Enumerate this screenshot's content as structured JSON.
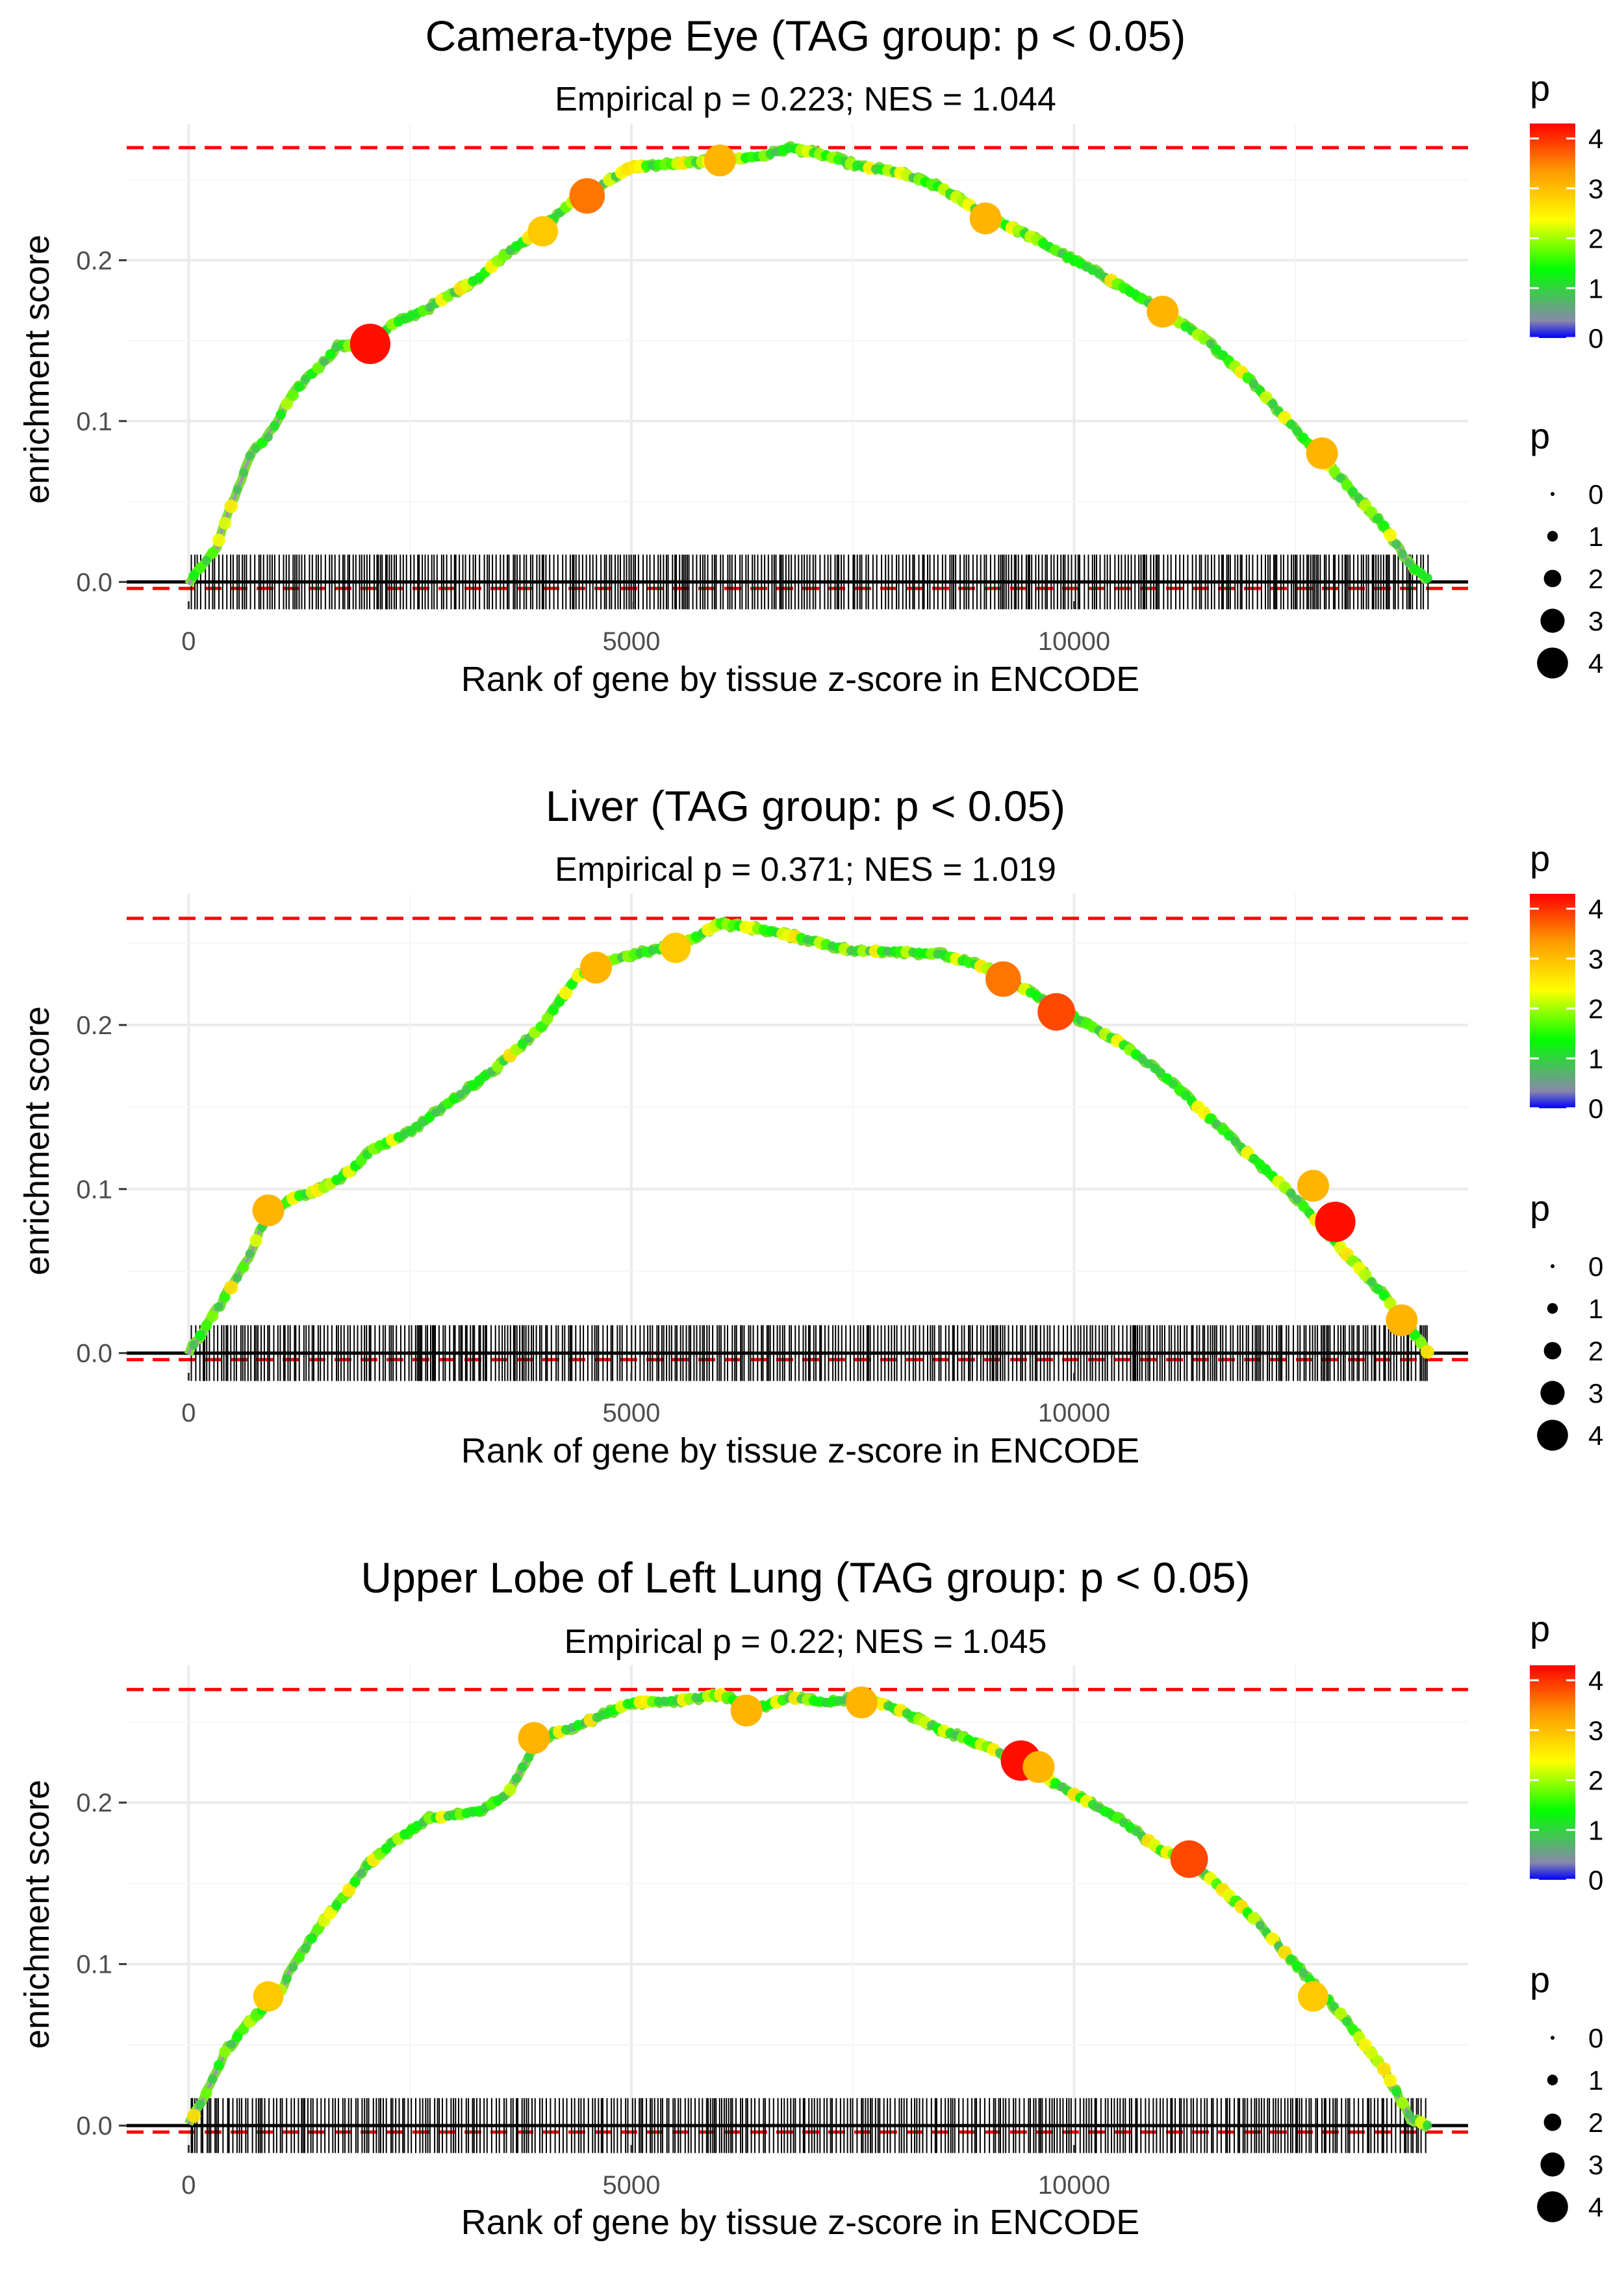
{
  "figure": {
    "axis_x_label": "Rank of gene by tissue z-score in ENCODE",
    "axis_y_label": "enrichment score",
    "legend_color_title": "p",
    "legend_size_title": "p",
    "legend_color_ticks": [
      "0",
      "1",
      "2",
      "3",
      "4"
    ],
    "legend_size_ticks": [
      "0",
      "1",
      "2",
      "3",
      "4"
    ],
    "colors": {
      "dashed_line": "#ff0000",
      "baseline": "#000000",
      "gradient": [
        "#0000ff",
        "#8888aa",
        "#00ff00",
        "#ffff00",
        "#ff9900",
        "#ff0000"
      ]
    }
  },
  "chart_data": [
    {
      "type": "line",
      "title": "Camera-type Eye (TAG group: p < 0.05)",
      "subtitle": "Empirical p = 0.223; NES = 1.044",
      "xlabel": "Rank of gene by tissue z-score in ENCODE",
      "ylabel": "enrichment score",
      "xlim": [
        -700,
        14450
      ],
      "ylim": [
        -0.012,
        0.285
      ],
      "x_ticks": [
        0,
        5000,
        10000
      ],
      "x_tick_labels": [
        "0",
        "5000",
        "10000"
      ],
      "y_ticks": [
        0.0,
        0.1,
        0.2
      ],
      "y_tick_labels": [
        "0.0",
        "0.1",
        "0.2"
      ],
      "max_es_line": 0.27,
      "min_es_line": -0.004,
      "n_genes": 14000,
      "curve": [
        [
          0,
          0
        ],
        [
          300,
          0.02
        ],
        [
          500,
          0.05
        ],
        [
          700,
          0.08
        ],
        [
          900,
          0.09
        ],
        [
          1100,
          0.11
        ],
        [
          1300,
          0.125
        ],
        [
          1500,
          0.135
        ],
        [
          1700,
          0.148
        ],
        [
          2000,
          0.145
        ],
        [
          2300,
          0.16
        ],
        [
          2700,
          0.17
        ],
        [
          3000,
          0.18
        ],
        [
          3300,
          0.19
        ],
        [
          3600,
          0.205
        ],
        [
          4000,
          0.22
        ],
        [
          4300,
          0.235
        ],
        [
          4600,
          0.245
        ],
        [
          5000,
          0.258
        ],
        [
          5500,
          0.26
        ],
        [
          6000,
          0.262
        ],
        [
          6500,
          0.265
        ],
        [
          6800,
          0.27
        ],
        [
          7200,
          0.265
        ],
        [
          7600,
          0.258
        ],
        [
          8000,
          0.255
        ],
        [
          8500,
          0.245
        ],
        [
          9000,
          0.228
        ],
        [
          9500,
          0.215
        ],
        [
          10000,
          0.2
        ],
        [
          10500,
          0.185
        ],
        [
          11000,
          0.168
        ],
        [
          11500,
          0.15
        ],
        [
          12000,
          0.125
        ],
        [
          12500,
          0.095
        ],
        [
          13000,
          0.065
        ],
        [
          13500,
          0.035
        ],
        [
          13800,
          0.01
        ],
        [
          14000,
          0.002
        ]
      ],
      "highlight_points": [
        {
          "x": 2050,
          "y": 0.148,
          "p": 4.2
        },
        {
          "x": 4500,
          "y": 0.24,
          "p": 3.5
        },
        {
          "x": 6000,
          "y": 0.262,
          "p": 3.0
        },
        {
          "x": 9000,
          "y": 0.226,
          "p": 3.0
        },
        {
          "x": 11000,
          "y": 0.168,
          "p": 3.0
        },
        {
          "x": 12800,
          "y": 0.08,
          "p": 3.0
        },
        {
          "x": 4000,
          "y": 0.218,
          "p": 2.8
        }
      ]
    },
    {
      "type": "line",
      "title": "Liver (TAG group: p < 0.05)",
      "subtitle": "Empirical p = 0.371; NES = 1.019",
      "xlabel": "Rank of gene by tissue z-score in ENCODE",
      "ylabel": "enrichment score",
      "xlim": [
        -700,
        14450
      ],
      "ylim": [
        -0.012,
        0.28
      ],
      "x_ticks": [
        0,
        5000,
        10000
      ],
      "x_tick_labels": [
        "0",
        "5000",
        "10000"
      ],
      "y_ticks": [
        0.0,
        0.1,
        0.2
      ],
      "y_tick_labels": [
        "0.0",
        "0.1",
        "0.2"
      ],
      "max_es_line": 0.265,
      "min_es_line": -0.004,
      "n_genes": 14000,
      "curve": [
        [
          0,
          0
        ],
        [
          300,
          0.025
        ],
        [
          600,
          0.05
        ],
        [
          900,
          0.085
        ],
        [
          1200,
          0.095
        ],
        [
          1500,
          0.1
        ],
        [
          1800,
          0.11
        ],
        [
          2100,
          0.125
        ],
        [
          2500,
          0.135
        ],
        [
          3000,
          0.155
        ],
        [
          3500,
          0.175
        ],
        [
          4000,
          0.2
        ],
        [
          4400,
          0.23
        ],
        [
          4800,
          0.24
        ],
        [
          5200,
          0.245
        ],
        [
          5600,
          0.25
        ],
        [
          6000,
          0.262
        ],
        [
          6500,
          0.258
        ],
        [
          7000,
          0.252
        ],
        [
          7500,
          0.245
        ],
        [
          8000,
          0.245
        ],
        [
          8500,
          0.243
        ],
        [
          9000,
          0.235
        ],
        [
          9500,
          0.22
        ],
        [
          10000,
          0.205
        ],
        [
          10500,
          0.19
        ],
        [
          11000,
          0.17
        ],
        [
          11500,
          0.145
        ],
        [
          12000,
          0.12
        ],
        [
          12500,
          0.095
        ],
        [
          13000,
          0.065
        ],
        [
          13500,
          0.035
        ],
        [
          13800,
          0.015
        ],
        [
          14000,
          0.0
        ]
      ],
      "highlight_points": [
        {
          "x": 12950,
          "y": 0.08,
          "p": 4.2
        },
        {
          "x": 9800,
          "y": 0.208,
          "p": 3.8
        },
        {
          "x": 9200,
          "y": 0.228,
          "p": 3.5
        },
        {
          "x": 900,
          "y": 0.087,
          "p": 3.0
        },
        {
          "x": 12700,
          "y": 0.102,
          "p": 3.0
        },
        {
          "x": 13700,
          "y": 0.02,
          "p": 3.0
        },
        {
          "x": 4600,
          "y": 0.235,
          "p": 3.0
        },
        {
          "x": 5500,
          "y": 0.247,
          "p": 2.8
        }
      ]
    },
    {
      "type": "line",
      "title": "Upper Lobe of Left Lung (TAG group: p < 0.05)",
      "subtitle": "Empirical p = 0.22; NES = 1.045",
      "xlabel": "Rank of gene by tissue z-score in ENCODE",
      "ylabel": "enrichment score",
      "xlim": [
        -700,
        14450
      ],
      "ylim": [
        -0.012,
        0.285
      ],
      "x_ticks": [
        0,
        5000,
        10000
      ],
      "x_tick_labels": [
        "0",
        "5000",
        "10000"
      ],
      "y_ticks": [
        0.0,
        0.1,
        0.2
      ],
      "y_tick_labels": [
        "0.0",
        "0.1",
        "0.2"
      ],
      "max_es_line": 0.27,
      "min_es_line": -0.004,
      "n_genes": 14000,
      "curve": [
        [
          0,
          0
        ],
        [
          200,
          0.02
        ],
        [
          400,
          0.045
        ],
        [
          700,
          0.065
        ],
        [
          1000,
          0.08
        ],
        [
          1200,
          0.1
        ],
        [
          1500,
          0.125
        ],
        [
          1800,
          0.145
        ],
        [
          2000,
          0.16
        ],
        [
          2300,
          0.175
        ],
        [
          2700,
          0.19
        ],
        [
          3000,
          0.192
        ],
        [
          3300,
          0.195
        ],
        [
          3600,
          0.205
        ],
        [
          3800,
          0.225
        ],
        [
          4000,
          0.24
        ],
        [
          4500,
          0.25
        ],
        [
          5000,
          0.262
        ],
        [
          5500,
          0.263
        ],
        [
          6000,
          0.267
        ],
        [
          6400,
          0.258
        ],
        [
          6800,
          0.265
        ],
        [
          7200,
          0.262
        ],
        [
          7600,
          0.265
        ],
        [
          8000,
          0.258
        ],
        [
          8500,
          0.245
        ],
        [
          9000,
          0.235
        ],
        [
          9400,
          0.225
        ],
        [
          10000,
          0.205
        ],
        [
          10500,
          0.19
        ],
        [
          11000,
          0.17
        ],
        [
          11300,
          0.165
        ],
        [
          12000,
          0.13
        ],
        [
          12500,
          0.1
        ],
        [
          13000,
          0.07
        ],
        [
          13500,
          0.035
        ],
        [
          13800,
          0.005
        ],
        [
          14000,
          0.0
        ]
      ],
      "highlight_points": [
        {
          "x": 9400,
          "y": 0.226,
          "p": 4.2
        },
        {
          "x": 11300,
          "y": 0.165,
          "p": 3.8
        },
        {
          "x": 3900,
          "y": 0.24,
          "p": 3.0
        },
        {
          "x": 6300,
          "y": 0.257,
          "p": 3.0
        },
        {
          "x": 7600,
          "y": 0.262,
          "p": 3.0
        },
        {
          "x": 9600,
          "y": 0.222,
          "p": 3.0
        },
        {
          "x": 12700,
          "y": 0.08,
          "p": 2.8
        },
        {
          "x": 900,
          "y": 0.08,
          "p": 2.8
        }
      ]
    }
  ]
}
